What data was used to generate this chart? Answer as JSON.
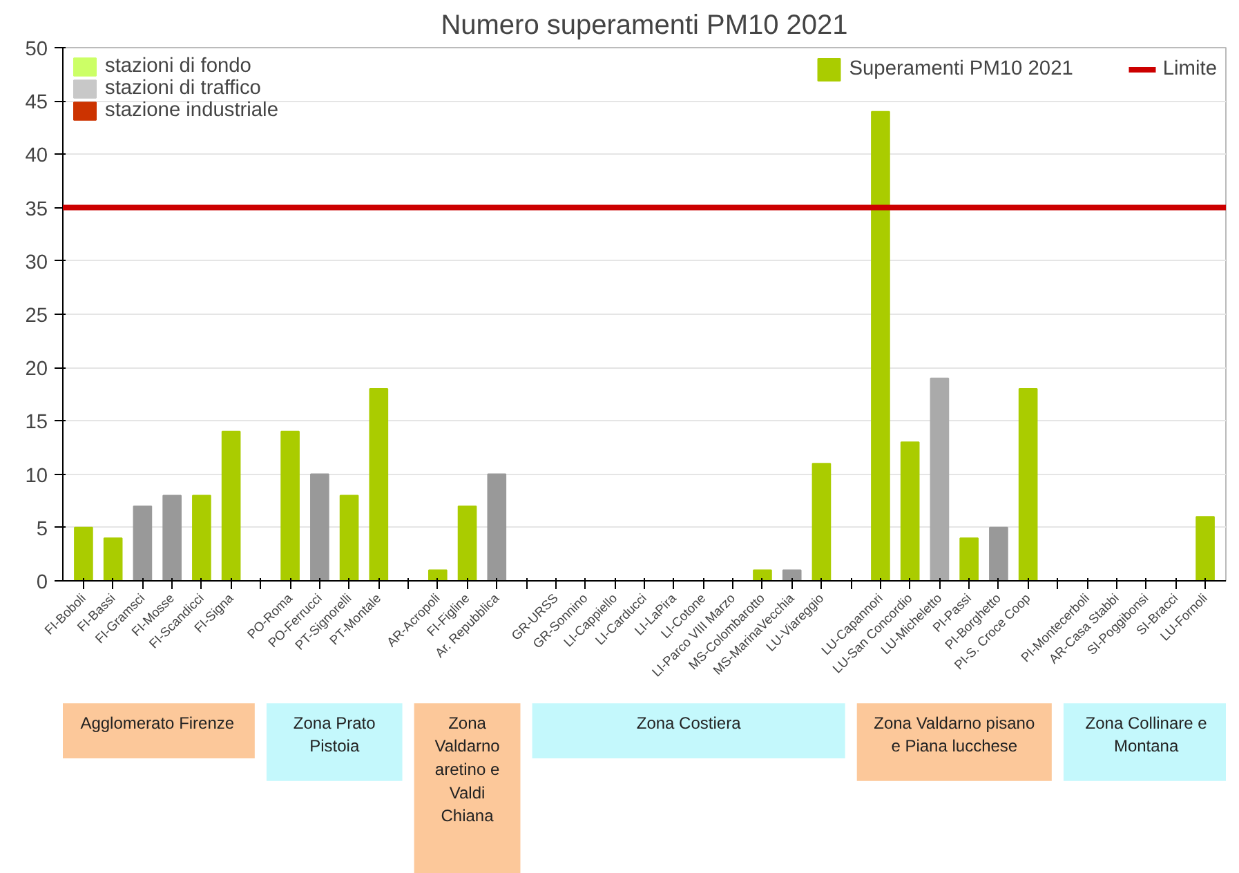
{
  "chart_data": {
    "type": "bar",
    "title": "Numero superamenti PM10 2021",
    "categories": [
      "FI-Boboli",
      "FI-Bassi",
      "FI-Gramsci",
      "FI-Mosse",
      "FI-Scandicci",
      "FI-Signa",
      null,
      "PO-Roma",
      "PO-Ferrucci",
      "PT-Signorelli",
      "PT-Montale",
      null,
      "AR-Acropoli",
      "FI-Figline",
      "Ar. Repubblica",
      null,
      "GR-URSS",
      "GR-Sonnino",
      "LI-Cappiello",
      "LI-Carducci",
      "LI-LaPira",
      "LI-Cotone",
      "LI-Parco VIII Marzo",
      "MS-Colombarotto",
      "MS-MarinaVecchia",
      "LU-Viareggio",
      null,
      "LU-Capannori",
      "LU-San Concordio",
      "LU-Micheletto",
      "PI-Passi",
      "PI-Borghetto",
      "PI-S. Croce Coop",
      null,
      "PI-Montecerboli",
      "AR-Casa Stabbi",
      "SI-Poggibonsi",
      "SI-Bracci",
      "LU-Fornoli"
    ],
    "series": [
      {
        "name": "Superamenti PM10 2021",
        "color": "#aacc00",
        "values": [
          5,
          4,
          7,
          8,
          8,
          14,
          null,
          14,
          10,
          8,
          18,
          null,
          1,
          7,
          10,
          null,
          0,
          0,
          0,
          0,
          0,
          0,
          0,
          1,
          1,
          11,
          null,
          44,
          13,
          19,
          4,
          5,
          18,
          null,
          0,
          0,
          0,
          0,
          6
        ],
        "colors": [
          "#aacc00",
          "#aacc00",
          "#999999",
          "#999999",
          "#aacc00",
          "#aacc00",
          null,
          "#aacc00",
          "#999999",
          "#aacc00",
          "#aacc00",
          null,
          "#aacc00",
          "#aacc00",
          "#999999",
          null,
          "#aacc00",
          "#999999",
          "#aacc00",
          "#999999",
          "#aacc00",
          "#cc2200",
          "#aacc00",
          "#aacc00",
          "#999999",
          "#aacc00",
          null,
          "#aacc00",
          "#aacc00",
          "#aaaaaa",
          "#aacc00",
          "#999999",
          "#aacc00",
          null,
          "#aacc00",
          "#aacc00",
          "#aacc00",
          "#999999",
          "#aacc00"
        ]
      },
      {
        "name": "stazioni di fondo",
        "color": "#ccff66",
        "values": [
          null,
          null,
          null,
          null,
          null,
          null,
          null,
          null,
          null,
          null,
          null,
          null,
          null,
          null,
          null,
          null,
          null,
          null,
          null,
          null,
          null,
          null,
          null,
          null,
          null,
          null,
          null,
          null,
          null,
          null,
          null,
          null,
          null,
          null,
          null,
          null,
          null,
          null,
          null
        ]
      },
      {
        "name": "stazioni di traffico",
        "color": "#c8c8c8",
        "values": [
          null,
          null,
          null,
          null,
          null,
          null,
          null,
          null,
          null,
          null,
          null,
          null,
          null,
          null,
          null,
          null,
          null,
          null,
          null,
          null,
          null,
          null,
          null,
          null,
          null,
          null,
          null,
          null,
          null,
          null,
          null,
          null,
          null,
          null,
          null,
          null,
          null,
          null,
          null
        ]
      },
      {
        "name": "stazione industriale",
        "color": "#cc3300",
        "values": [
          null,
          null,
          null,
          null,
          null,
          null,
          null,
          null,
          null,
          null,
          null,
          null,
          null,
          null,
          null,
          null,
          null,
          null,
          null,
          null,
          null,
          null,
          null,
          null,
          null,
          null,
          null,
          null,
          null,
          null,
          null,
          null,
          null,
          null,
          null,
          null,
          null,
          null,
          null
        ]
      }
    ],
    "ylim": [
      0,
      50
    ],
    "yticks": [
      0,
      5,
      10,
      15,
      20,
      25,
      30,
      35,
      40,
      45,
      50
    ],
    "grid": "y",
    "legend": "top",
    "ref_lines": [
      {
        "axis": "y",
        "value": 35,
        "label": "Limite",
        "color": "#cc0000"
      }
    ],
    "annotations": [
      "Agglomerato Firenze",
      "Zona Prato Pistoia",
      "Zona Valdarno aretino e Valdi Chiana",
      "Zona Costiera",
      "Zona Valdarno pisano e Piana lucchese",
      "Zona Collinare e Montana"
    ]
  }
}
